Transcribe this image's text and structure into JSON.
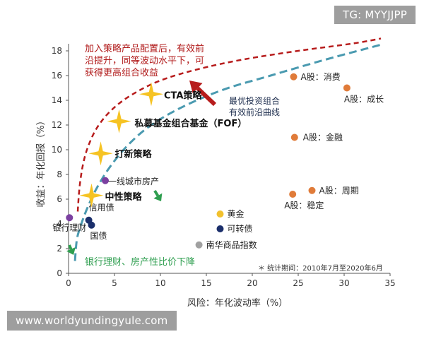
{
  "watermarks": {
    "top_right": "TG: MYYJJPP",
    "bottom_left": "www.worldyundingyule.com"
  },
  "colors": {
    "red_frontier": "#b71c1c",
    "teal_frontier": "#4a9ab0",
    "star": "#f6c323",
    "arrow_red": "#b71c1c",
    "arrow_green": "#2e9e4f",
    "axis": "#555555"
  },
  "chart_data": {
    "type": "scatter",
    "xlabel": "风险：年化波动率（%）",
    "ylabel": "收益：年化回报（%）",
    "xlim": [
      0,
      35
    ],
    "ylim": [
      0,
      18.5
    ],
    "xticks": [
      0,
      5,
      10,
      15,
      20,
      25,
      30,
      35
    ],
    "yticks": [
      0,
      2,
      4,
      6,
      8,
      10,
      12,
      14,
      16,
      18
    ],
    "grid": false,
    "points": [
      {
        "name": "银行理财",
        "x": 0.1,
        "y": 4.5,
        "color": "#7b3fa0"
      },
      {
        "name": "国债",
        "x": 2.5,
        "y": 3.9,
        "color": "#1b2f6b"
      },
      {
        "name": "信用债",
        "x": 2.2,
        "y": 4.3,
        "color": "#1b2f6b"
      },
      {
        "name": "一线城市房产",
        "x": 4.0,
        "y": 7.5,
        "color": "#7b3fa0"
      },
      {
        "name": "黄金",
        "x": 16.5,
        "y": 4.8,
        "color": "#f2c12e"
      },
      {
        "name": "可转债",
        "x": 16.5,
        "y": 3.6,
        "color": "#1b2f6b"
      },
      {
        "name": "南华商品指数",
        "x": 14.2,
        "y": 2.3,
        "color": "#a0a0a0"
      },
      {
        "name": "A股：消费",
        "x": 24.5,
        "y": 15.9,
        "color": "#e07b39"
      },
      {
        "name": "A股：成长",
        "x": 30.3,
        "y": 15.0,
        "color": "#e07b39"
      },
      {
        "name": "A股：金融",
        "x": 24.6,
        "y": 11.0,
        "color": "#e07b39"
      },
      {
        "name": "A股：周期",
        "x": 26.5,
        "y": 6.7,
        "color": "#e07b39"
      },
      {
        "name": "A股：稳定",
        "x": 24.4,
        "y": 6.4,
        "color": "#e07b39"
      }
    ],
    "stars": [
      {
        "name": "CTA策略",
        "x": 9.0,
        "y": 14.5
      },
      {
        "name": "私募基金组合基金（FOF）",
        "x": 5.5,
        "y": 12.3
      },
      {
        "name": "打新策略",
        "x": 3.5,
        "y": 9.7
      },
      {
        "name": "中性策略",
        "x": 2.5,
        "y": 6.3
      }
    ],
    "frontier_red": {
      "x": [
        1.0,
        1.2,
        1.6,
        2.2,
        3.2,
        4.8,
        7.0,
        10.0,
        14.0,
        19.0,
        25.0,
        31.0,
        34.0
      ],
      "y": [
        5.0,
        7.0,
        8.9,
        10.4,
        11.9,
        13.3,
        14.5,
        15.6,
        16.5,
        17.3,
        18.0,
        18.6,
        19.0
      ]
    },
    "frontier_teal": {
      "x": [
        0.7,
        0.9,
        1.3,
        2.0,
        3.0,
        4.5,
        6.5,
        9.0,
        12.5,
        17.0,
        22.0,
        28.0,
        34.0
      ],
      "y": [
        1.0,
        2.7,
        3.8,
        5.2,
        6.8,
        8.6,
        10.4,
        12.0,
        13.5,
        14.9,
        16.0,
        17.3,
        18.5
      ]
    },
    "annotations": {
      "red_note": [
        "加入策略产品配置后，有效前",
        "沿提升，同等波动水平下，可",
        "获得更高组合收益"
      ],
      "navy_note": [
        "最优投资组合",
        "有效前沿曲线"
      ],
      "green_note": "银行理财、房产性比价下降",
      "footnote": "＊ 统计期间：2010年7月至2020年6月"
    }
  }
}
